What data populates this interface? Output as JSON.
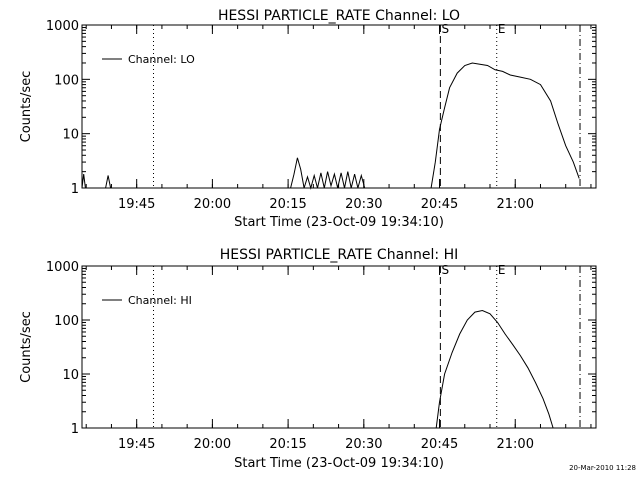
{
  "chart_data": [
    {
      "type": "line",
      "title": "HESSI PARTICLE_RATE Channel: LO",
      "xlabel": "Start Time (23-Oct-09 19:34:10)",
      "ylabel": "Counts/sec",
      "yscale": "log",
      "ylim": [
        1,
        1000
      ],
      "ytick_values": [
        1,
        10,
        100,
        1000
      ],
      "ytick_labels": [
        "1",
        "10",
        "100",
        "1000"
      ],
      "xlim": [
        "19:34:10",
        "21:16:00"
      ],
      "xtick_values": [
        "19:45",
        "20:00",
        "20:15",
        "20:30",
        "20:45",
        "21:00"
      ],
      "xtick_labels": [
        "19:45",
        "20:00",
        "20:15",
        "20:30",
        "20:45",
        "21:00"
      ],
      "legend": {
        "position": "top-left",
        "entries": [
          "Channel: LO"
        ]
      },
      "grid": false,
      "markers": [
        {
          "time": "19:48:20",
          "style": "dotted",
          "label": ""
        },
        {
          "time": "20:45:10",
          "style": "dashed",
          "label": "S"
        },
        {
          "time": "20:56:20",
          "style": "dotted",
          "label": "E"
        },
        {
          "time": "21:12:50",
          "style": "dashdot",
          "label": ""
        }
      ],
      "series": [
        {
          "name": "Channel: LO",
          "x": [
            "19:34:10",
            "19:34:30",
            "19:34:50",
            "19:35:20",
            "19:38:50",
            "19:39:20",
            "19:39:50",
            "20:15:30",
            "20:16:10",
            "20:16:50",
            "20:17:30",
            "20:18:10",
            "20:18:50",
            "20:19:30",
            "20:20:10",
            "20:20:50",
            "20:21:30",
            "20:22:10",
            "20:22:50",
            "20:23:30",
            "20:24:10",
            "20:24:50",
            "20:25:30",
            "20:26:10",
            "20:26:50",
            "20:27:30",
            "20:28:10",
            "20:28:50",
            "20:29:30",
            "20:30:10",
            "20:31:00",
            "20:43:20",
            "20:44:10",
            "20:45:00",
            "20:46:00",
            "20:47:00",
            "20:48:30",
            "20:50:00",
            "20:51:30",
            "20:53:00",
            "20:54:30",
            "20:56:00",
            "20:57:30",
            "20:59:00",
            "21:01:00",
            "21:03:00",
            "21:05:00",
            "21:07:00",
            "21:08:30",
            "21:10:00",
            "21:11:30",
            "21:12:40"
          ],
          "y": [
            1,
            1.8,
            1,
            1,
            1,
            1.7,
            1,
            1,
            1.8,
            3.6,
            2.2,
            1,
            1.6,
            1,
            1.7,
            1,
            1.9,
            1,
            2,
            1.1,
            1.8,
            1,
            1.9,
            1,
            2,
            1,
            1.8,
            1,
            1.7,
            1,
            1,
            1,
            3,
            12,
            30,
            70,
            130,
            180,
            200,
            190,
            180,
            150,
            140,
            120,
            110,
            100,
            80,
            40,
            15,
            6,
            3,
            1.5
          ]
        }
      ]
    },
    {
      "type": "line",
      "title": "HESSI PARTICLE_RATE Channel: HI",
      "xlabel": "Start Time (23-Oct-09 19:34:10)",
      "ylabel": "Counts/sec",
      "yscale": "log",
      "ylim": [
        1,
        1000
      ],
      "ytick_values": [
        1,
        10,
        100,
        1000
      ],
      "ytick_labels": [
        "1",
        "10",
        "100",
        "1000"
      ],
      "xlim": [
        "19:34:10",
        "21:16:00"
      ],
      "xtick_values": [
        "19:45",
        "20:00",
        "20:15",
        "20:30",
        "20:45",
        "21:00"
      ],
      "xtick_labels": [
        "19:45",
        "20:00",
        "20:15",
        "20:30",
        "20:45",
        "21:00"
      ],
      "legend": {
        "position": "top-left",
        "entries": [
          "Channel: HI"
        ]
      },
      "grid": false,
      "markers": [
        {
          "time": "19:48:20",
          "style": "dotted",
          "label": ""
        },
        {
          "time": "20:45:10",
          "style": "dashed",
          "label": "S"
        },
        {
          "time": "20:56:20",
          "style": "dotted",
          "label": "E"
        },
        {
          "time": "21:12:50",
          "style": "dashdot",
          "label": ""
        }
      ],
      "series": [
        {
          "name": "Channel: HI",
          "x": [
            "20:44:20",
            "20:45:00",
            "20:46:00",
            "20:47:30",
            "20:49:00",
            "20:50:30",
            "20:52:00",
            "20:53:30",
            "20:55:00",
            "20:56:30",
            "20:58:00",
            "20:59:30",
            "21:01:00",
            "21:02:30",
            "21:04:00",
            "21:05:30",
            "21:06:40",
            "21:07:30"
          ],
          "y": [
            1,
            3,
            10,
            25,
            55,
            100,
            140,
            150,
            130,
            90,
            55,
            35,
            22,
            13,
            7,
            3.5,
            1.8,
            1
          ]
        }
      ]
    }
  ],
  "footer": {
    "timestamp": "20-Mar-2010 11:28"
  }
}
